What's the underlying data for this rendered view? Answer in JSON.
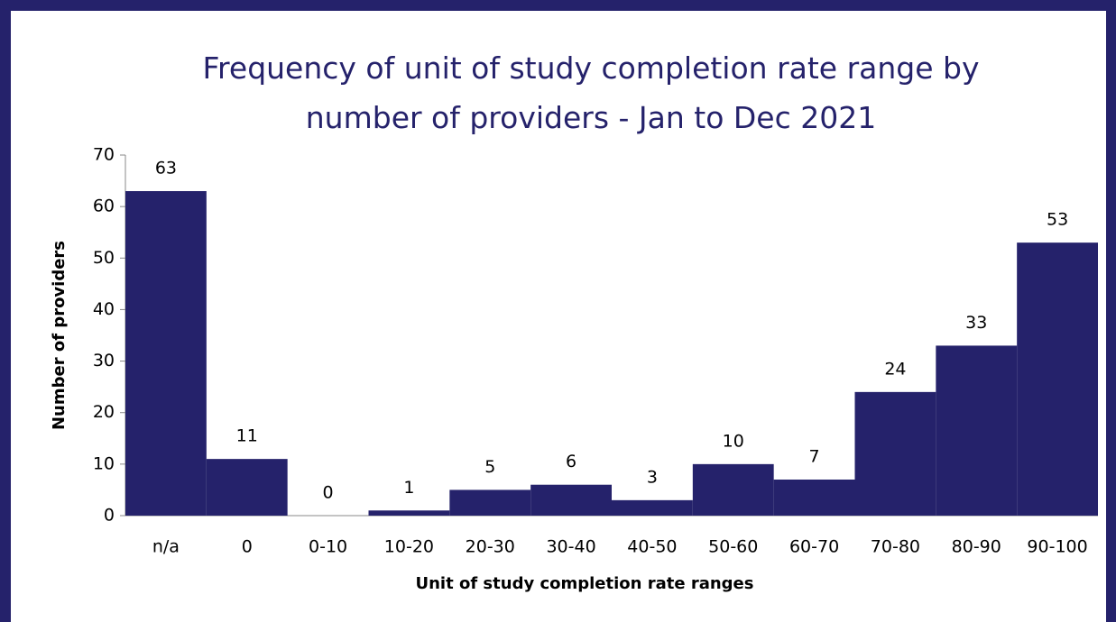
{
  "chart_data": {
    "type": "bar",
    "title": "Frequency of unit of study completion rate range by number of providers - Jan to Dec 2021",
    "x_label": "Unit of study completion rate ranges",
    "y_label": "Number of providers",
    "categories": [
      "n/a",
      "0",
      "0-10",
      "10-20",
      "20-30",
      "30-40",
      "40-50",
      "50-60",
      "60-70",
      "70-80",
      "80-90",
      "90-100"
    ],
    "values": [
      63,
      11,
      0,
      1,
      5,
      6,
      3,
      10,
      7,
      24,
      33,
      53
    ],
    "color": "#25226b",
    "ylim": [
      0,
      70
    ],
    "yticks": [
      0,
      10,
      20,
      30,
      40,
      50,
      60,
      70
    ],
    "grid": false
  }
}
